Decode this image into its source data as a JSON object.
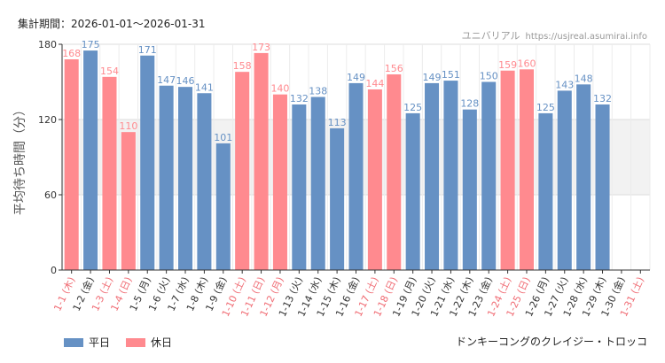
{
  "header": {
    "period": "集計期間：2026-01-01〜2026-01-31",
    "brand": "ユニバリアル",
    "site": "https://usjreal.asumirai.info"
  },
  "legend": {
    "weekday": "平日",
    "holiday": "休日"
  },
  "attraction": "ドンキーコングのクレイジー・トロッコ",
  "colors": {
    "weekday": "#6691c4",
    "holiday": "#ff8a8f",
    "band": "#f2f2f2"
  },
  "chart_data": {
    "type": "bar",
    "ylabel": "平均待ち時間（分）",
    "ylim": [
      0,
      180
    ],
    "yticks": [
      0,
      60,
      120,
      180
    ],
    "highlight_band": [
      60,
      120
    ],
    "categories": [
      "1-1 (木)",
      "1-2 (金)",
      "1-3 (土)",
      "1-4 (日)",
      "1-5 (月)",
      "1-6 (火)",
      "1-7 (水)",
      "1-8 (木)",
      "1-9 (金)",
      "1-10 (土)",
      "1-11 (日)",
      "1-12 (月)",
      "1-13 (火)",
      "1-14 (水)",
      "1-15 (木)",
      "1-16 (金)",
      "1-17 (土)",
      "1-18 (日)",
      "1-19 (月)",
      "1-20 (火)",
      "1-21 (水)",
      "1-22 (木)",
      "1-23 (金)",
      "1-24 (土)",
      "1-25 (日)",
      "1-26 (月)",
      "1-27 (火)",
      "1-28 (水)",
      "1-29 (木)",
      "1-30 (金)",
      "1-31 (土)"
    ],
    "values": [
      168,
      175,
      154,
      110,
      171,
      147,
      146,
      141,
      101,
      158,
      173,
      140,
      132,
      138,
      113,
      149,
      144,
      156,
      125,
      149,
      151,
      128,
      150,
      159,
      160,
      125,
      143,
      148,
      132,
      null,
      null
    ],
    "holiday": [
      true,
      false,
      true,
      true,
      false,
      false,
      false,
      false,
      false,
      true,
      true,
      true,
      false,
      false,
      false,
      false,
      true,
      true,
      false,
      false,
      false,
      false,
      false,
      true,
      true,
      false,
      false,
      false,
      false,
      false,
      true
    ]
  }
}
